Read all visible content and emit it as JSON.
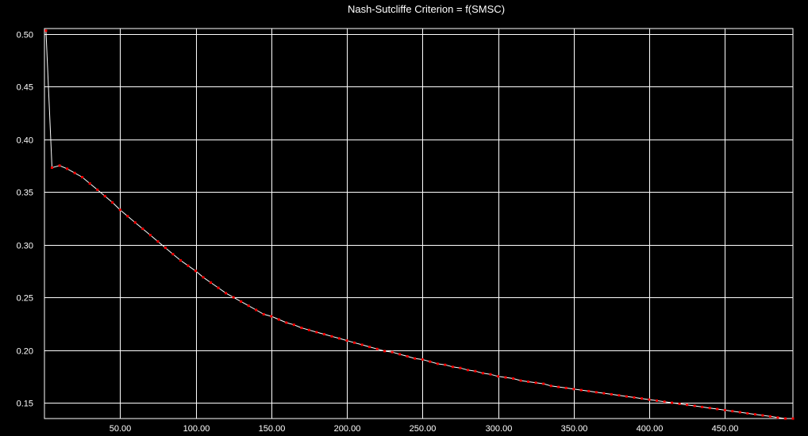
{
  "chart_data": {
    "type": "line",
    "title": "Nash-Sutcliffe Criterion = f(SMSC)",
    "xlabel": "",
    "ylabel": "",
    "xlim": [
      0,
      495
    ],
    "ylim": [
      0.135,
      0.505
    ],
    "x_ticks": [
      50,
      100,
      150,
      200,
      250,
      300,
      350,
      400,
      450
    ],
    "x_tick_labels": [
      "50.00",
      "100.00",
      "150.00",
      "200.00",
      "250.00",
      "300.00",
      "350.00",
      "400.00",
      "450.00"
    ],
    "y_ticks": [
      0.15,
      0.2,
      0.25,
      0.3,
      0.35,
      0.4,
      0.45,
      0.5
    ],
    "y_tick_labels": [
      "0.15",
      "0.20",
      "0.25",
      "0.30",
      "0.35",
      "0.40",
      "0.45",
      "0.50"
    ],
    "grid": true,
    "colors": {
      "background": "#000000",
      "grid": "#ffffff",
      "line": "#ffffff",
      "marker": "#ff0000",
      "text": "#ffffff"
    },
    "series": [
      {
        "x": [
          1,
          5,
          10,
          15,
          20,
          25,
          30,
          35,
          40,
          45,
          50,
          55,
          60,
          65,
          70,
          75,
          80,
          85,
          90,
          95,
          100,
          105,
          110,
          115,
          120,
          125,
          130,
          135,
          140,
          145,
          150,
          155,
          160,
          165,
          170,
          175,
          180,
          185,
          190,
          195,
          200,
          205,
          210,
          215,
          220,
          225,
          230,
          235,
          240,
          245,
          250,
          255,
          260,
          265,
          270,
          275,
          280,
          285,
          290,
          295,
          300,
          305,
          310,
          315,
          320,
          325,
          330,
          335,
          340,
          345,
          350,
          355,
          360,
          365,
          370,
          375,
          380,
          385,
          390,
          395,
          400,
          405,
          410,
          415,
          420,
          425,
          430,
          435,
          440,
          445,
          450,
          455,
          460,
          465,
          470,
          475,
          480,
          485,
          490,
          495
        ],
        "values": [
          0.503,
          0.373,
          0.375,
          0.372,
          0.368,
          0.364,
          0.358,
          0.352,
          0.346,
          0.34,
          0.333,
          0.327,
          0.321,
          0.315,
          0.309,
          0.303,
          0.297,
          0.291,
          0.285,
          0.28,
          0.275,
          0.269,
          0.264,
          0.259,
          0.254,
          0.25,
          0.246,
          0.242,
          0.238,
          0.234,
          0.232,
          0.229,
          0.226,
          0.224,
          0.221,
          0.219,
          0.217,
          0.215,
          0.213,
          0.211,
          0.209,
          0.207,
          0.205,
          0.203,
          0.201,
          0.199,
          0.198,
          0.196,
          0.194,
          0.192,
          0.191,
          0.189,
          0.187,
          0.186,
          0.184,
          0.183,
          0.181,
          0.18,
          0.178,
          0.177,
          0.175,
          0.174,
          0.173,
          0.171,
          0.17,
          0.169,
          0.168,
          0.166,
          0.165,
          0.164,
          0.163,
          0.162,
          0.161,
          0.16,
          0.159,
          0.158,
          0.157,
          0.156,
          0.155,
          0.154,
          0.153,
          0.152,
          0.151,
          0.15,
          0.149,
          0.148,
          0.147,
          0.146,
          0.145,
          0.144,
          0.143,
          0.142,
          0.141,
          0.14,
          0.139,
          0.138,
          0.137,
          0.136,
          0.135,
          0.135
        ]
      }
    ]
  }
}
